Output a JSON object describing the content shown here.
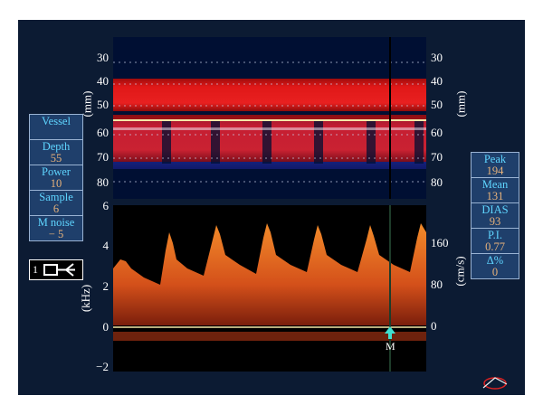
{
  "depth_axis": {
    "unit": "(mm)",
    "ticks": [
      "30",
      "40",
      "50",
      "60",
      "70",
      "80"
    ]
  },
  "freq_axis": {
    "unit": "(kHz)",
    "ticks": [
      "6",
      "4",
      "2",
      "0",
      "−2"
    ]
  },
  "velocity_axis": {
    "unit": "(cm/s)",
    "ticks": [
      "160",
      "80",
      "0"
    ]
  },
  "left_panel": {
    "vessel_label": "Vessel",
    "depth_label": "Depth",
    "depth_value": "55",
    "power_label": "Power",
    "power_value": "10",
    "sample_label": "Sample",
    "sample_value": "6",
    "mnoise_label": "M noise",
    "mnoise_value": "− 5",
    "probe_number": "1"
  },
  "right_panel": {
    "peak_label": "Peak",
    "peak_value": "194",
    "mean_label": "Mean",
    "mean_value": "131",
    "dias_label": "DIAS",
    "dias_value": "93",
    "pi_label": "P.I.",
    "pi_value": "0.77",
    "delta_label": "Δ%",
    "delta_value": "0"
  },
  "cursor_label": "M",
  "colors": {
    "background": "#0c1b33",
    "panel": "#1f3f6b",
    "label": "#5fd5ff",
    "value": "#e7b27b",
    "mmode_red": "#d61515",
    "mmode_blue": "#1a2ea8",
    "spectrum_orange": "#e2661c",
    "gate_line": "#f5e8a8",
    "cursor_marker": "#3fe0d0"
  }
}
